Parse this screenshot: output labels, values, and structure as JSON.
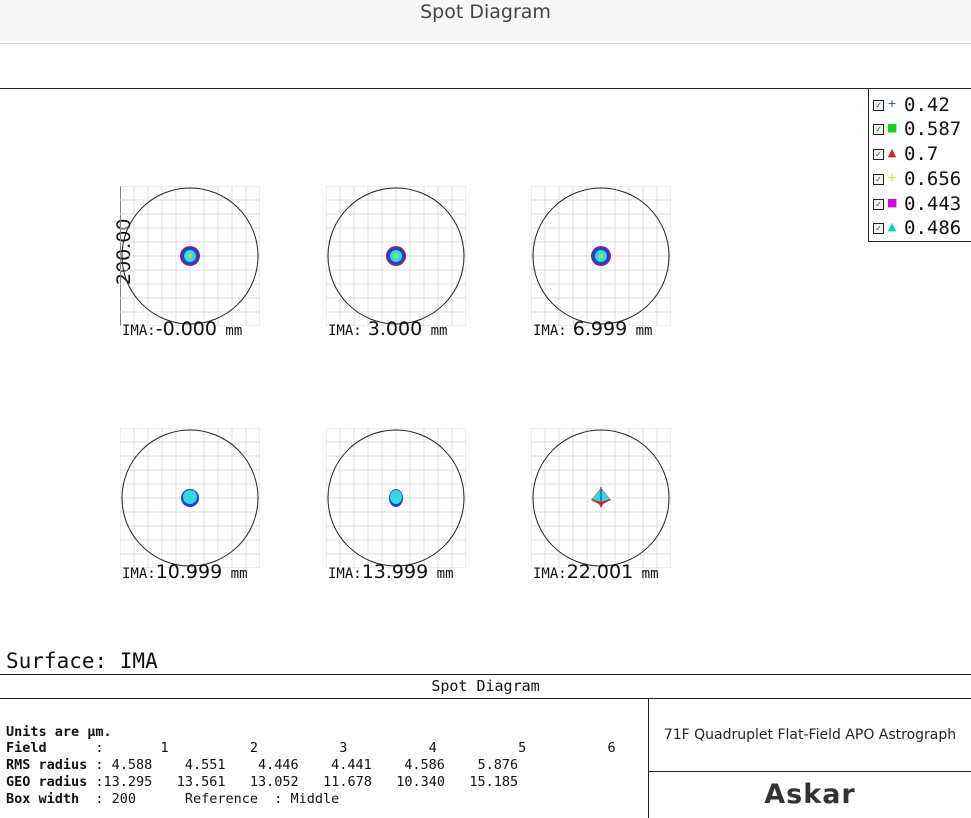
{
  "window": {
    "title": "Spot Diagram"
  },
  "legend": [
    {
      "value": "0.42",
      "marker": "+",
      "color": "#1f3fe0"
    },
    {
      "value": "0.587",
      "marker": "■",
      "color": "#11d511"
    },
    {
      "value": "0.7",
      "marker": "▲",
      "color": "#e01e1e"
    },
    {
      "value": "0.656",
      "marker": "+",
      "color": "#d8d800"
    },
    {
      "value": "0.443",
      "marker": "■",
      "color": "#e000e0"
    },
    {
      "value": "0.486",
      "marker": "▲",
      "color": "#00d5d5"
    }
  ],
  "scale_label": "200.00",
  "spots": [
    {
      "prefix": "IMA:",
      "value": "-0.000",
      "unit": "mm",
      "shape": "ring"
    },
    {
      "prefix": "IMA:",
      "value": " 3.000",
      "unit": "mm",
      "shape": "ring"
    },
    {
      "prefix": "IMA:",
      "value": " 6.999",
      "unit": "mm",
      "shape": "ring"
    },
    {
      "prefix": "IMA:",
      "value": "10.999",
      "unit": "mm",
      "shape": "dot"
    },
    {
      "prefix": "IMA:",
      "value": "13.999",
      "unit": "mm",
      "shape": "oval"
    },
    {
      "prefix": "IMA:",
      "value": "22.001",
      "unit": "mm",
      "shape": "spike"
    }
  ],
  "surface": "Surface: IMA",
  "info": {
    "header": "Spot Diagram",
    "units": "Units are µm.",
    "field_label": "Field",
    "field_values": [
      "1",
      "2",
      "3",
      "4",
      "5",
      "6"
    ],
    "rms_label": "RMS radius",
    "rms_values": [
      "4.588",
      "4.551",
      "4.446",
      "4.441",
      "4.586",
      "5.876"
    ],
    "geo_label": "GEO radius",
    "geo_values": [
      "13.295",
      "13.561",
      "13.052",
      "11.678",
      "10.340",
      "15.185"
    ],
    "box_label": "Box width",
    "box_value": "200",
    "reference": "Reference  : Middle",
    "product": "71F Quadruplet Flat-Field APO Astrograph",
    "brand": "Askar"
  }
}
